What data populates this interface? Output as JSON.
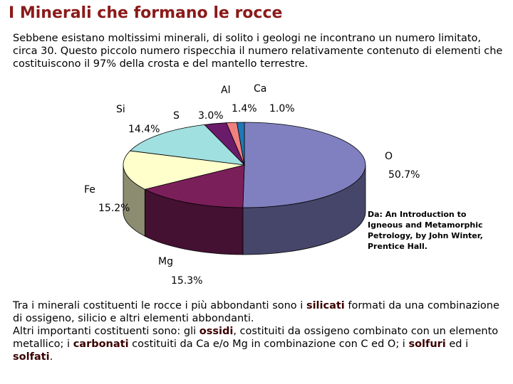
{
  "title": "I Minerali che formano le rocce",
  "intro": "Sebbene esistano moltissimi minerali, di solito i geologi ne incontrano un numero limitato, circa 30. Questo piccolo numero rispecchia il numero relativamente contenuto di elementi che costituiscono il 97% della crosta e del mantello terrestre.",
  "chart_data": {
    "type": "pie",
    "categories": [
      "O",
      "Mg",
      "Fe",
      "Si",
      "S",
      "Al",
      "Ca"
    ],
    "values": [
      50.7,
      15.3,
      15.2,
      14.4,
      3.0,
      1.4,
      1.0
    ],
    "value_labels": [
      "50.7%",
      "15.3%",
      "15.2%",
      "14.4%",
      "3.0%",
      "1.4%",
      "1.0%"
    ],
    "colors": [
      "#8080c0",
      "#7b1f5a",
      "#ffffcc",
      "#a0e0e0",
      "#6a1b6a",
      "#f08080",
      "#1f78b4"
    ]
  },
  "source": "Da: An Introduction to Igneous and Metamorphic Petrology, by John Winter, Prentice Hall.",
  "body": [
    [
      "Tra i minerali costituenti le rocce i più abbondanti sono i ",
      "silicati",
      " formati da una combinazione di ossigeno, silicio e altri elementi abbondanti."
    ],
    [
      "Altri importanti costituenti sono: gli ",
      "ossidi",
      ", costituiti da ossigeno combinato con un elemento metallico; i ",
      "carbonati",
      " costituiti da Ca e/o Mg in combinazione con C ed O; i ",
      "solfuri",
      " ed i ",
      "solfati",
      "."
    ]
  ]
}
